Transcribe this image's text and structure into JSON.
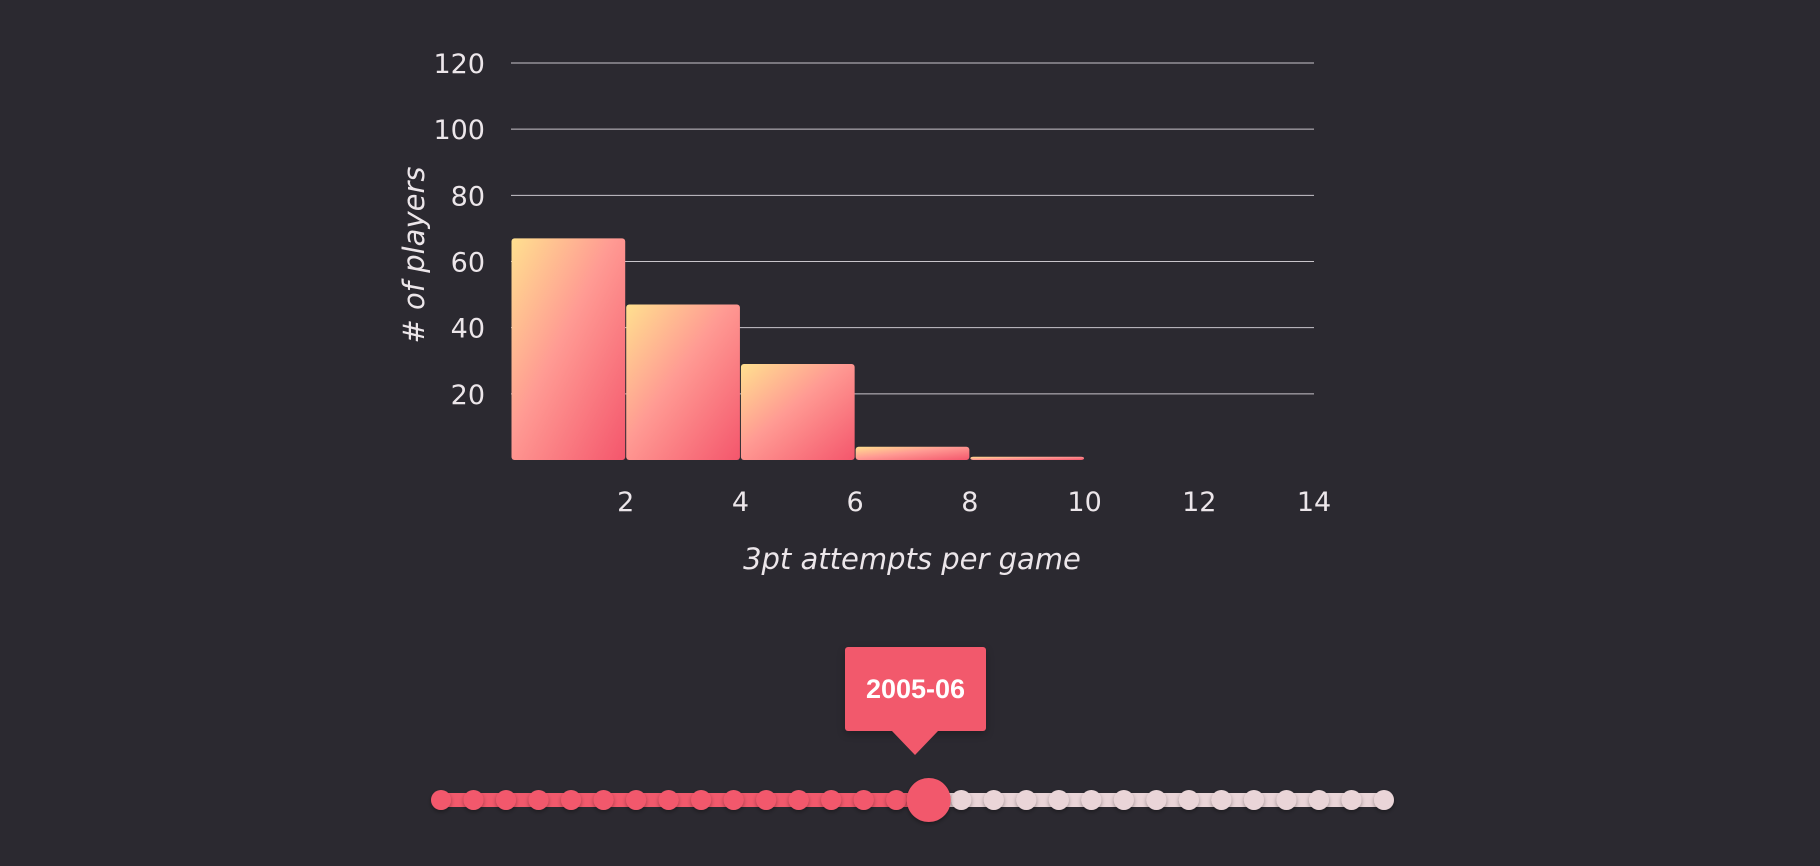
{
  "chart_data": {
    "type": "bar",
    "bins": [
      {
        "x0": 0,
        "x1": 2,
        "value": 67
      },
      {
        "x0": 2,
        "x1": 4,
        "value": 47
      },
      {
        "x0": 4,
        "x1": 6,
        "value": 29
      },
      {
        "x0": 6,
        "x1": 8,
        "value": 4
      },
      {
        "x0": 8,
        "x1": 10,
        "value": 1
      }
    ],
    "xlabel": "3pt attempts per game",
    "ylabel": "# of players",
    "xlim": [
      0,
      14
    ],
    "ylim": [
      0,
      120
    ],
    "x_ticks": [
      "2",
      "4",
      "6",
      "8",
      "10",
      "12",
      "14"
    ],
    "y_ticks": [
      "20",
      "40",
      "60",
      "80",
      "100",
      "120"
    ],
    "grid": true,
    "colors": {
      "bar_top": "#ffe08f",
      "bar_bottom": "#f4566c",
      "grid": "#c9c5cb",
      "text": "#ece6ea",
      "background": "#2b2930"
    }
  },
  "season_slider": {
    "selected_label": "2005-06",
    "total_stops": 30,
    "selected_index": 15,
    "active_color": "#f2596c",
    "inactive_color": "#ead5d8"
  }
}
